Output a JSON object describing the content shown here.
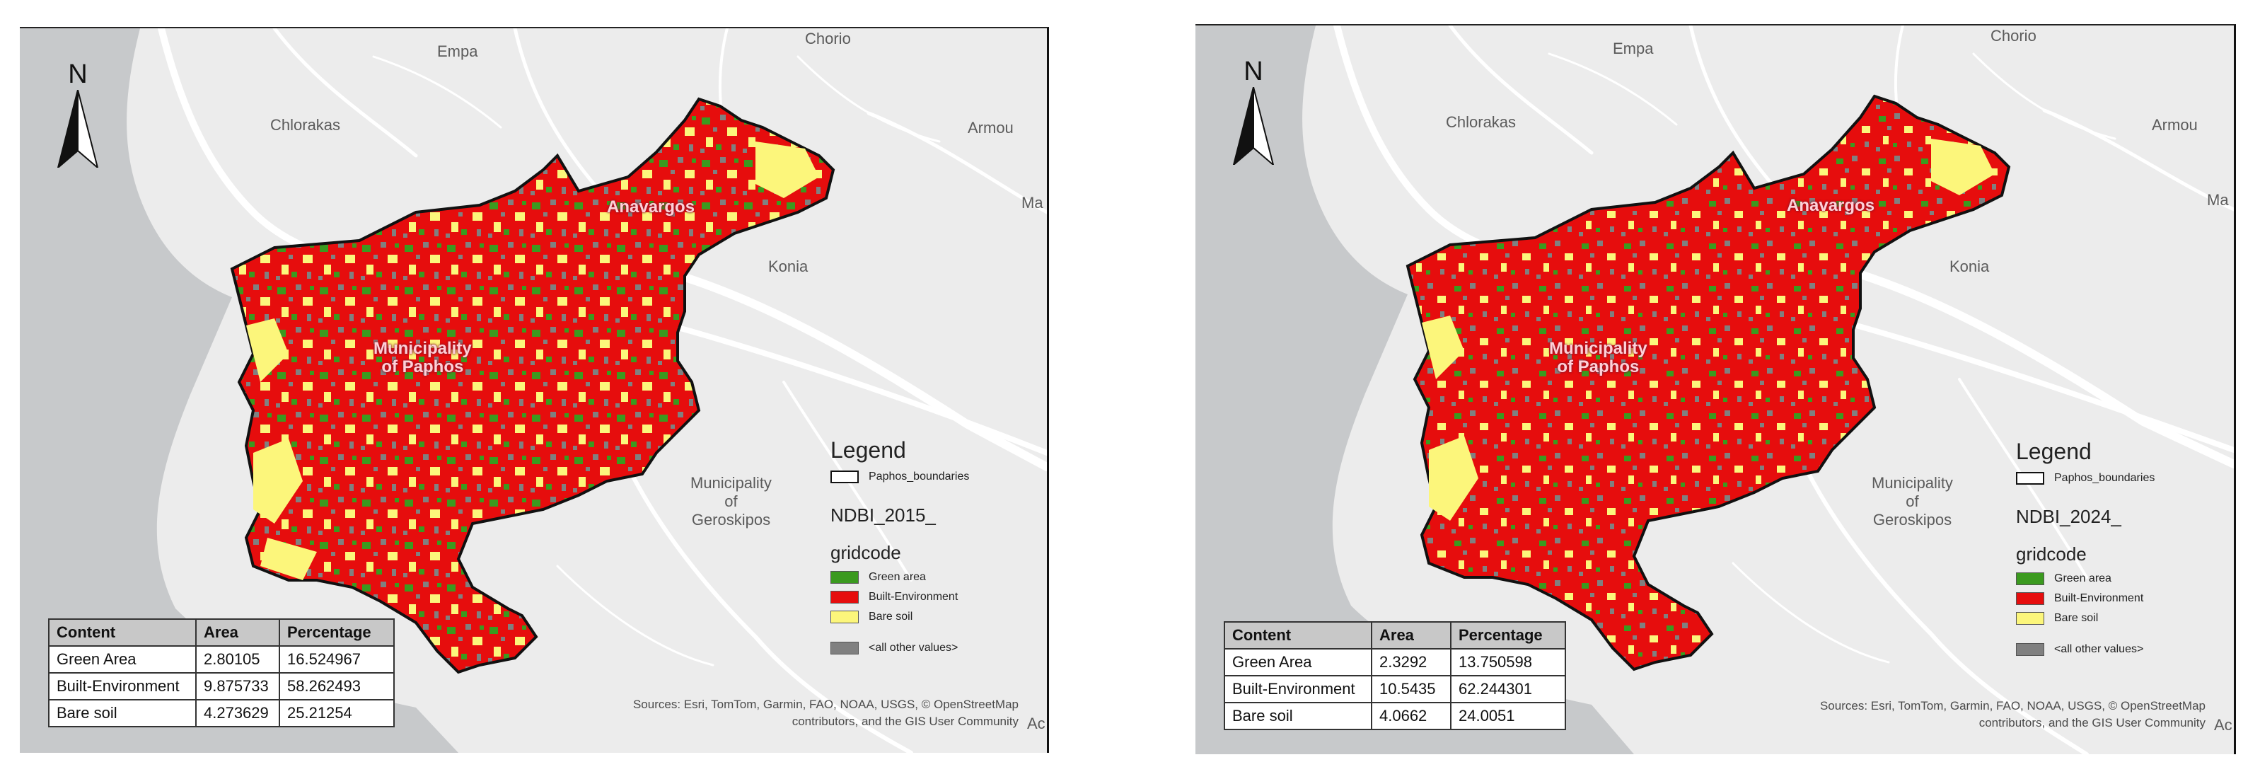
{
  "panels": [
    {
      "north_label": "N",
      "places": {
        "empa": "Empa",
        "chorio": "Chorio",
        "chlorakas": "Chlorakas",
        "armou": "Armou",
        "ma": "Ma",
        "konia": "Konia",
        "anavargos": "Anavargos",
        "muni_geroskipos": [
          "Municipality",
          "of",
          "Geroskipos"
        ],
        "muni_paphos": [
          "Municipality",
          "of Paphos"
        ],
        "ac": "Ac"
      },
      "legend": {
        "title": "Legend",
        "boundary_label": "Paphos_boundaries",
        "layer_name": "NDBI_2015_",
        "field_name": "gridcode",
        "classes": [
          {
            "label": "Green area",
            "color": "#3b9a1f"
          },
          {
            "label": "Built-Environment",
            "color": "#e60d0d"
          },
          {
            "label": "Bare soil",
            "color": "#fcf67b"
          },
          {
            "label": "<all other values>",
            "color": "#808080"
          }
        ]
      },
      "table": {
        "headers": [
          "Content",
          "Area",
          "Percentage"
        ],
        "rows": [
          [
            "Green Area",
            "2.80105",
            "16.524967"
          ],
          [
            "Built-Environment",
            "9.875733",
            "58.262493"
          ],
          [
            "Bare soil",
            "4.273629",
            "25.21254"
          ]
        ]
      },
      "attribution": [
        "Sources: Esri, TomTom, Garmin, FAO, NOAA, USGS, © OpenStreetMap",
        "contributors, and the GIS User Community"
      ]
    },
    {
      "north_label": "N",
      "places": {
        "empa": "Empa",
        "chorio": "Chorio",
        "chlorakas": "Chlorakas",
        "armou": "Armou",
        "ma": "Ma",
        "konia": "Konia",
        "anavargos": "Anavargos",
        "muni_geroskipos": [
          "Municipality",
          "of",
          "Geroskipos"
        ],
        "muni_paphos": [
          "Municipality",
          "of Paphos"
        ],
        "ac": "Ac"
      },
      "legend": {
        "title": "Legend",
        "boundary_label": "Paphos_boundaries",
        "layer_name": "NDBI_2024_",
        "field_name": "gridcode",
        "classes": [
          {
            "label": "Green area",
            "color": "#3b9a1f"
          },
          {
            "label": "Built-Environment",
            "color": "#e60d0d"
          },
          {
            "label": "Bare soil",
            "color": "#fcf67b"
          },
          {
            "label": "<all other values>",
            "color": "#808080"
          }
        ]
      },
      "table": {
        "headers": [
          "Content",
          "Area",
          "Percentage"
        ],
        "rows": [
          [
            "Green Area",
            "2.3292",
            "13.750598"
          ],
          [
            "Built-Environment",
            "10.5435",
            "62.244301"
          ],
          [
            "Bare soil",
            "4.0662",
            "24.0051"
          ]
        ]
      },
      "attribution": [
        "Sources: Esri, TomTom, Garmin, FAO, NOAA, USGS, © OpenStreetMap",
        "contributors, and the GIS User Community"
      ]
    }
  ],
  "colors": {
    "sea": "#c7c9cb",
    "land": "#ececec",
    "roads": "#ffffff",
    "boundary": "#111111"
  }
}
